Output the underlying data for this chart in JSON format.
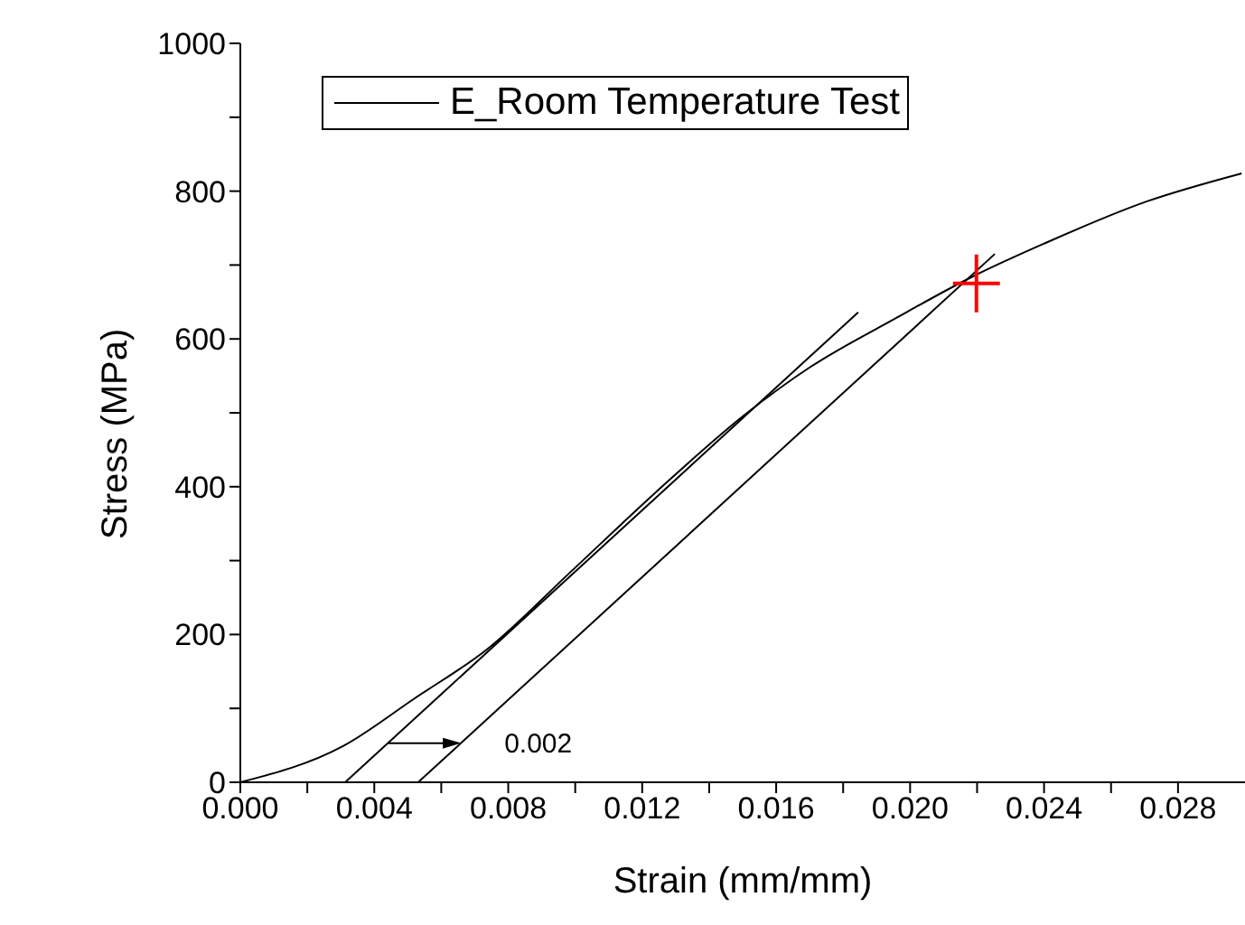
{
  "chart_data": {
    "type": "line",
    "xlabel": "Strain (mm/mm)",
    "ylabel": "Stress (MPa)",
    "xlim": [
      0,
      0.03
    ],
    "ylim": [
      0,
      1000
    ],
    "xticks": [
      {
        "value": 0,
        "label": "0.000"
      },
      {
        "value": 0.002,
        "label": null
      },
      {
        "value": 0.004,
        "label": "0.004"
      },
      {
        "value": 0.006,
        "label": null
      },
      {
        "value": 0.008,
        "label": "0.008"
      },
      {
        "value": 0.01,
        "label": null
      },
      {
        "value": 0.012,
        "label": "0.012"
      },
      {
        "value": 0.014,
        "label": null
      },
      {
        "value": 0.016,
        "label": "0.016"
      },
      {
        "value": 0.018,
        "label": null
      },
      {
        "value": 0.02,
        "label": "0.020"
      },
      {
        "value": 0.022,
        "label": null
      },
      {
        "value": 0.024,
        "label": "0.024"
      },
      {
        "value": 0.026,
        "label": null
      },
      {
        "value": 0.028,
        "label": "0.028"
      }
    ],
    "yticks": [
      0,
      {
        "value": 100,
        "label": null
      },
      200,
      {
        "value": 300,
        "label": null
      },
      400,
      {
        "value": 500,
        "label": null
      },
      600,
      {
        "value": 700,
        "label": null
      },
      800,
      {
        "value": 900,
        "label": null
      },
      1000
    ],
    "grid": false,
    "legend": "top",
    "series": [
      {
        "name": "E_Room Temperature Test",
        "color": "#000000",
        "x": [
          0,
          0.00307,
          0.00522,
          0.00737,
          0.00987,
          0.01237,
          0.01505,
          0.01702,
          0.01953,
          0.02185,
          0.024,
          0.027,
          0.0299
        ],
        "values": [
          0,
          49,
          114,
          180,
          285,
          391,
          497,
          562,
          627,
          684,
          729,
          785,
          824
        ]
      },
      {
        "color": "#000000",
        "x": [
          0.00313,
          0.01845
        ],
        "values": [
          0,
          636
        ]
      },
      {
        "color": "#000000",
        "x": [
          0.00531,
          0.02253
        ],
        "values": [
          0,
          715
        ]
      },
      {
        "type": "scatter",
        "color": "#ff0000",
        "marker": "cross",
        "x": [
          0.02198
        ],
        "values": [
          675
        ]
      }
    ],
    "annotations": [
      "0.002"
    ]
  }
}
